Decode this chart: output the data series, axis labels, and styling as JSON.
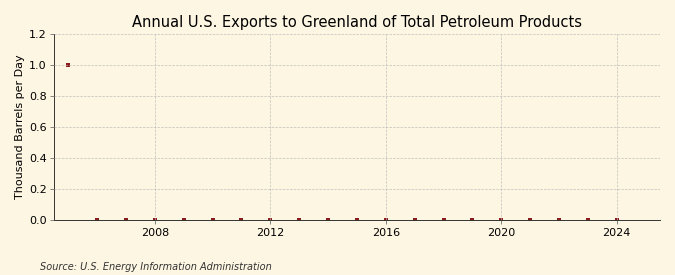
{
  "title": "Annual U.S. Exports to Greenland of Total Petroleum Products",
  "ylabel": "Thousand Barrels per Day",
  "source": "Source: U.S. Energy Information Administration",
  "years": [
    2005,
    2006,
    2007,
    2008,
    2009,
    2010,
    2011,
    2012,
    2013,
    2014,
    2015,
    2016,
    2017,
    2018,
    2019,
    2020,
    2021,
    2022,
    2023,
    2024
  ],
  "values": [
    1.0,
    0.0,
    0.0,
    0.0,
    0.0,
    0.0,
    0.0,
    0.0,
    0.0,
    0.0,
    0.0,
    0.0,
    0.0,
    0.0,
    0.0,
    0.0,
    0.0,
    0.0,
    0.0,
    0.0
  ],
  "xlim": [
    2004.5,
    2025.5
  ],
  "ylim": [
    0.0,
    1.2
  ],
  "yticks": [
    0.0,
    0.2,
    0.4,
    0.6,
    0.8,
    1.0,
    1.2
  ],
  "xticks": [
    2008,
    2012,
    2016,
    2020,
    2024
  ],
  "background_color": "#fdf6e3",
  "plot_bg_color": "#fdf6e3",
  "line_color": "#8b1a1a",
  "marker_color": "#8b1a1a",
  "grid_color": "#bbbbbb",
  "title_fontsize": 10.5,
  "label_fontsize": 8,
  "tick_fontsize": 8,
  "source_fontsize": 7
}
